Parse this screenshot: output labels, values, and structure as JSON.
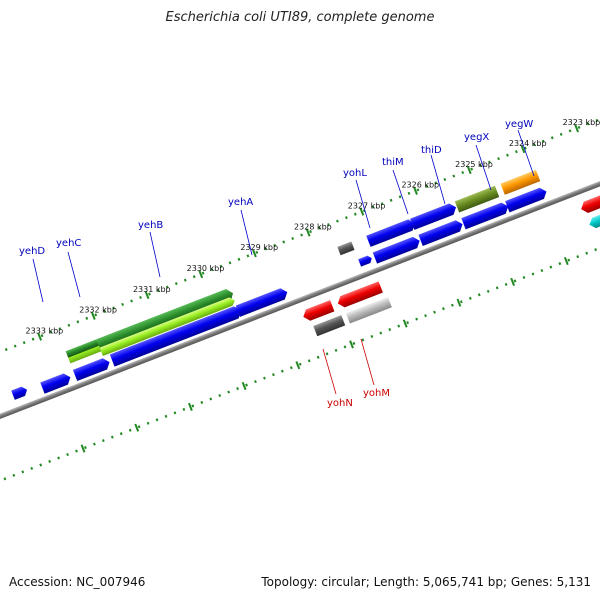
{
  "title": "Escherichia coli UTI89, complete genome",
  "footer": {
    "accession": "Accession: NC_007946",
    "summary": "Topology: circular; Length: 5,065,741 bp; Genes: 5,131"
  },
  "colors": {
    "blue_gene": "#0000ee",
    "red_gene": "#ee0000",
    "cyan_gene": "#00cccc",
    "green_gene": "#2a8a2a",
    "lightgreen_gene": "#99ee22",
    "olive_gene": "#6b8e23",
    "orange_gene": "#ff9900",
    "darkgray_gene": "#555555",
    "lightgray_gene": "#bbbbbb",
    "axis": "#888888",
    "ruler": "#228822",
    "forward_label": "#0000bb",
    "reverse_label": "#cc0000"
  },
  "ticks": [
    {
      "label": "2333 kbp"
    },
    {
      "label": "2332 kbp"
    },
    {
      "label": "2331 kbp"
    },
    {
      "label": "2330 kbp"
    },
    {
      "label": "2329 kbp"
    },
    {
      "label": "2328 kbp"
    },
    {
      "label": "2327 kbp"
    },
    {
      "label": "2326 kbp"
    },
    {
      "label": "2325 kbp"
    },
    {
      "label": "2324 kbp"
    },
    {
      "label": "2323 kbp"
    }
  ],
  "labels": {
    "forward": [
      "yehD",
      "yehC",
      "yehB",
      "yehA",
      "yohL",
      "thiM",
      "thiD",
      "yegX",
      "yegW"
    ],
    "reverse": [
      "yohN",
      "yohM"
    ]
  }
}
